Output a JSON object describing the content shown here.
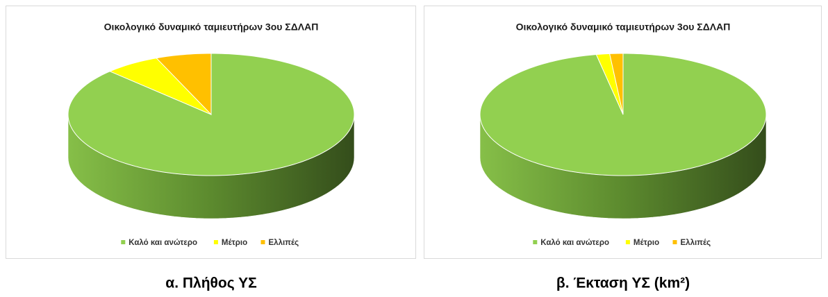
{
  "chart_data": [
    {
      "type": "pie3d",
      "title": "Οικολογικό δυναμικό ταμιευτήρων 3ου ΣΔΛΑΠ",
      "caption": "α. Πλήθος ΥΣ",
      "categories": [
        "Καλό και ανώτερο",
        "Μέτριο",
        "Ελλιπές"
      ],
      "values": [
        87.5,
        6.25,
        6.25
      ],
      "colors": [
        "#92d050",
        "#ffff00",
        "#ffc000"
      ],
      "legend": "bottom"
    },
    {
      "type": "pie3d",
      "title": "Οικολογικό δυναμικό ταμιευτήρων 3ου ΣΔΛΑΠ",
      "caption": "β. Έκταση ΥΣ (km²)",
      "categories": [
        "Καλό και ανώτερο",
        "Μέτριο",
        "Ελλιπές"
      ],
      "values": [
        97,
        1.5,
        1.5
      ],
      "colors": [
        "#92d050",
        "#ffff00",
        "#ffc000"
      ],
      "legend": "bottom"
    }
  ]
}
